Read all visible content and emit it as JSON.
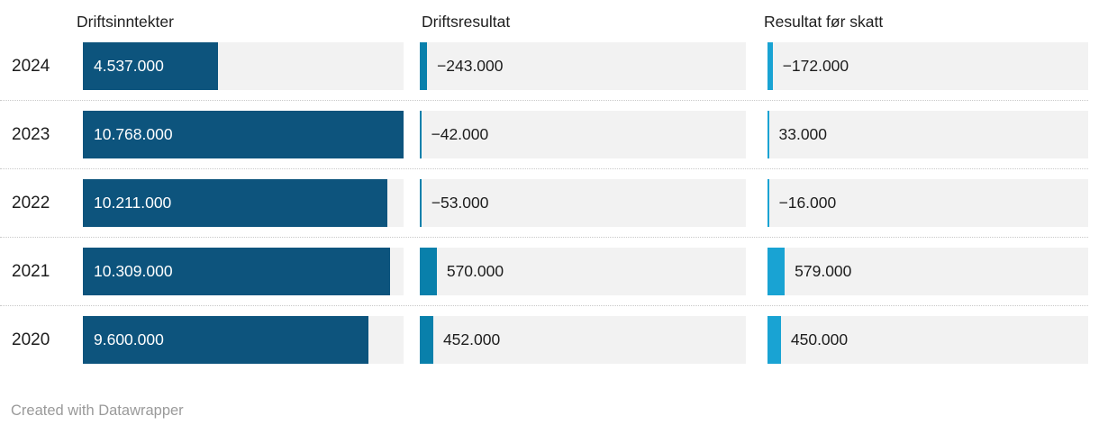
{
  "chart_data": {
    "type": "bar",
    "orientation": "horizontal",
    "title": "",
    "legend_position": "none",
    "grid": "dotted-row-separators",
    "track_color": "#f2f2f2",
    "scale_max": 10768000,
    "categories": [
      "2024",
      "2023",
      "2022",
      "2021",
      "2020"
    ],
    "columns": [
      {
        "label": "Driftsinntekter",
        "color": "#0d547d"
      },
      {
        "label": "Driftsresultat",
        "color": "#0980ab"
      },
      {
        "label": "Resultat før skatt",
        "color": "#19a3d3"
      }
    ],
    "series": [
      {
        "name": "Driftsinntekter",
        "values": [
          4537000,
          10768000,
          10211000,
          10309000,
          9600000
        ],
        "labels": [
          "4.537.000",
          "10.768.000",
          "10.211.000",
          "10.309.000",
          "9.600.000"
        ]
      },
      {
        "name": "Driftsresultat",
        "values": [
          -243000,
          -42000,
          -53000,
          570000,
          452000
        ],
        "labels": [
          "−243.000",
          "−42.000",
          "−53.000",
          "570.000",
          "452.000"
        ]
      },
      {
        "name": "Resultat før skatt",
        "values": [
          -172000,
          33000,
          -16000,
          579000,
          450000
        ],
        "labels": [
          "−172.000",
          "33.000",
          "−16.000",
          "579.000",
          "450.000"
        ]
      }
    ]
  },
  "footer": {
    "text": "Created with Datawrapper"
  }
}
